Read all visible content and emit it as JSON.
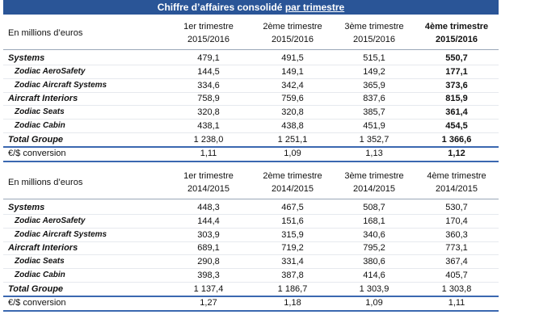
{
  "title": {
    "main": "Chiffre d’affaires consolidé",
    "underlined": "par trimestre"
  },
  "tables": [
    {
      "header": {
        "label": "En millions d’euros",
        "columns": [
          [
            "1er trimestre",
            "2015/2016"
          ],
          [
            "2ème trimestre",
            "2015/2016"
          ],
          [
            "3ème trimestre",
            "2015/2016"
          ],
          [
            "4ème trimestre",
            "2015/2016"
          ]
        ]
      },
      "rows": [
        {
          "label": "Systems",
          "values": [
            "479,1",
            "491,5",
            "515,1",
            "550,7"
          ]
        },
        {
          "label": "Zodiac AeroSafety",
          "values": [
            "144,5",
            "149,1",
            "149,2",
            "177,1"
          ]
        },
        {
          "label": "Zodiac Aircraft Systems",
          "values": [
            "334,6",
            "342,4",
            "365,9",
            "373,6"
          ]
        },
        {
          "label": "Aircraft Interiors",
          "values": [
            "758,9",
            "759,6",
            "837,6",
            "815,9"
          ]
        },
        {
          "label": "Zodiac Seats",
          "values": [
            "320,8",
            "320,8",
            "385,7",
            "361,4"
          ]
        },
        {
          "label": "Zodiac Cabin",
          "values": [
            "438,1",
            "438,8",
            "451,9",
            "454,5"
          ]
        },
        {
          "label": "Total Groupe",
          "values": [
            "1 238,0",
            "1 251,1",
            "1 352,7",
            "1 366,6"
          ]
        },
        {
          "label": "€/$ conversion",
          "values": [
            "1,11",
            "1,09",
            "1,13",
            "1,12"
          ]
        }
      ]
    },
    {
      "header": {
        "label": "En millions d’euros",
        "columns": [
          [
            "1er trimestre",
            "2014/2015"
          ],
          [
            "2ème trimestre",
            "2014/2015"
          ],
          [
            "3ème trimestre",
            "2014/2015"
          ],
          [
            "4ème trimestre",
            "2014/2015"
          ]
        ]
      },
      "rows": [
        {
          "label": "Systems",
          "values": [
            "448,3",
            "467,5",
            "508,7",
            "530,7"
          ]
        },
        {
          "label": "Zodiac AeroSafety",
          "values": [
            "144,4",
            "151,6",
            "168,1",
            "170,4"
          ]
        },
        {
          "label": "Zodiac Aircraft Systems",
          "values": [
            "303,9",
            "315,9",
            "340,6",
            "360,3"
          ]
        },
        {
          "label": "Aircraft Interiors",
          "values": [
            "689,1",
            "719,2",
            "795,2",
            "773,1"
          ]
        },
        {
          "label": "Zodiac Seats",
          "values": [
            "290,8",
            "331,4",
            "380,6",
            "367,4"
          ]
        },
        {
          "label": "Zodiac Cabin",
          "values": [
            "398,3",
            "387,8",
            "414,6",
            "405,7"
          ]
        },
        {
          "label": "Total Groupe",
          "values": [
            "1 137,4",
            "1 186,7",
            "1 303,9",
            "1 303,8"
          ]
        },
        {
          "label": "€/$ conversion",
          "values": [
            "1,27",
            "1,18",
            "1,09",
            "1,11"
          ]
        }
      ]
    }
  ]
}
